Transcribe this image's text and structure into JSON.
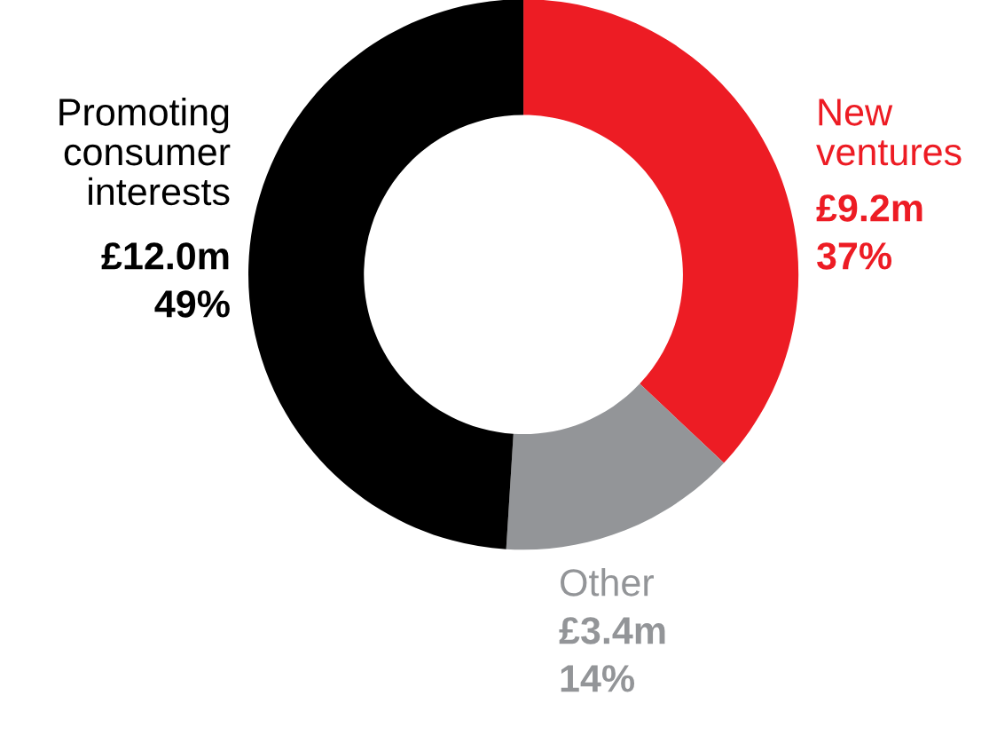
{
  "chart_data": {
    "type": "donut",
    "categories": [
      "New\nventures",
      "Other",
      "Promoting\nconsumer\ninterests"
    ],
    "values": [
      37,
      14,
      49
    ],
    "value_labels": [
      "37%",
      "14%",
      "49%"
    ],
    "annotations": [
      "£9.2m",
      "£3.4m",
      "£12.0m"
    ],
    "colors": [
      "#ed1c24",
      "#939598",
      "#000000"
    ]
  }
}
